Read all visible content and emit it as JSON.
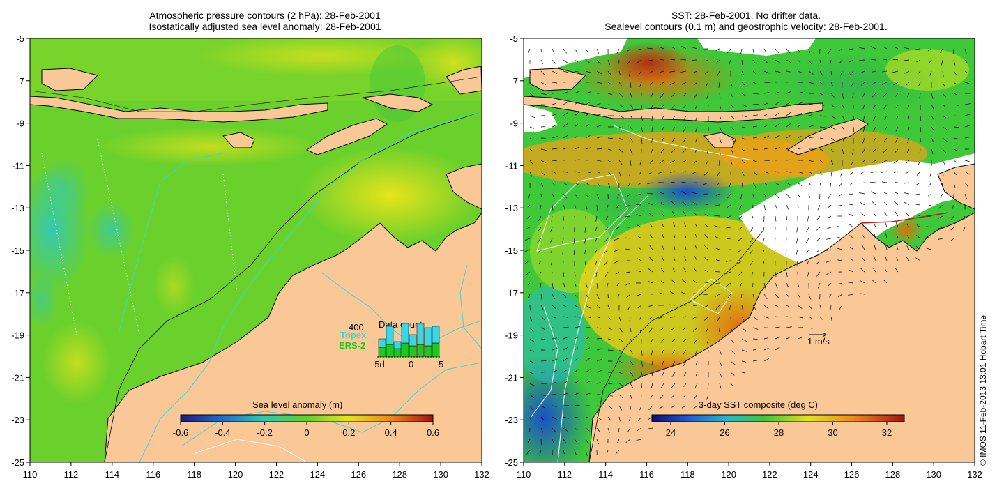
{
  "left_panel": {
    "title_line1": "Atmospheric pressure contours (2 hPa): 28-Feb-2001",
    "title_line2": "Isostatically adjusted sea level anomaly: 28-Feb-2001",
    "colorbar_title": "Sea level anomaly (m)",
    "colorbar_ticks": [
      "-0.6",
      "-0.4",
      "-0.2",
      "0",
      "0.2",
      "0.4",
      "0.6"
    ],
    "inset": {
      "count_label": "400",
      "title": "Data count",
      "series1": "Topex",
      "series2": "ERS-2",
      "x_ticks": [
        "-5d",
        "0",
        "5"
      ],
      "topex_counts": [
        6,
        13,
        5,
        14,
        8,
        15,
        13,
        12
      ],
      "ers2_counts": [
        7,
        9,
        6,
        10,
        8,
        9,
        8,
        10
      ]
    }
  },
  "right_panel": {
    "title_line1": "SST: 28-Feb-2001. No drifter data.",
    "title_line2": "Sealevel contours (0.1 m) and geostrophic velocity: 28-Feb-2001.",
    "colorbar_title": "3-day SST composite (deg C)",
    "colorbar_ticks": [
      "24",
      "26",
      "28",
      "30",
      "32"
    ],
    "scale_label": "1 m/s"
  },
  "axes": {
    "x_ticks": [
      "110",
      "112",
      "114",
      "116",
      "118",
      "120",
      "122",
      "124",
      "126",
      "128",
      "130",
      "132"
    ],
    "y_ticks": [
      "-5",
      "-7",
      "-9",
      "-11",
      "-13",
      "-15",
      "-17",
      "-19",
      "-21",
      "-23",
      "-25"
    ]
  },
  "credit": "© IMOS 11-Feb-2013 13:01 Hobart Time",
  "colors": {
    "land": "#f9c896",
    "sla_low": "#1e3c8c",
    "sla_mid": "#5fcf2f",
    "sla_high": "#a0140f",
    "contour_cyan": "#3ad6d6",
    "missing": "#ffffff"
  }
}
